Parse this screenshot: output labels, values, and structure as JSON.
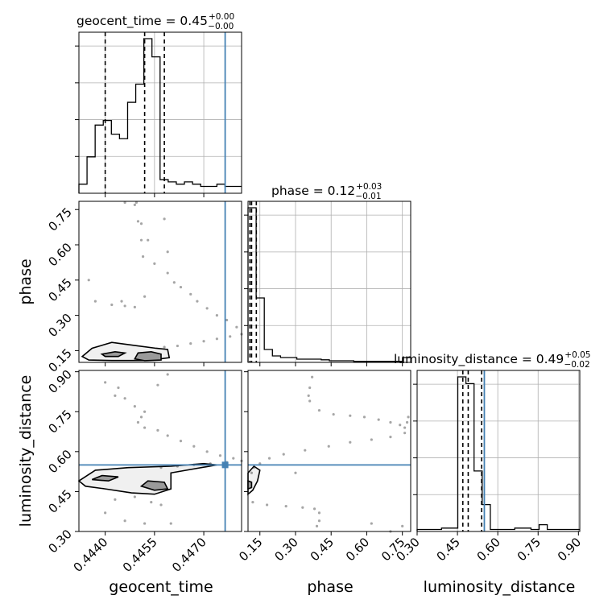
{
  "chart_data": {
    "type": "corner",
    "truth_color": "#4682b4",
    "parameters": [
      {
        "name": "geocent_time",
        "range": [
          0.4432,
          0.44815
        ],
        "ticks": [
          "0.4440",
          "0.4455",
          "0.4470"
        ],
        "tick_values": [
          0.444,
          0.4455,
          0.447
        ],
        "truth": 0.44765
      },
      {
        "name": "phase",
        "range": [
          0.1,
          0.785
        ],
        "ticks": [
          "0.15",
          "0.30",
          "0.45",
          "0.60",
          "0.75"
        ],
        "tick_values": [
          0.15,
          0.3,
          0.45,
          0.6,
          0.75
        ],
        "truth": null
      },
      {
        "name": "luminosity_distance",
        "range": [
          0.3,
          0.905
        ],
        "ticks": [
          "0.30",
          "0.45",
          "0.60",
          "0.75",
          "0.90"
        ],
        "tick_values": [
          0.3,
          0.45,
          0.6,
          0.75,
          0.9
        ],
        "truth": 0.55
      }
    ],
    "titles": [
      {
        "text": "geocent_time = 0.45",
        "sup": "+0.00",
        "sub": "−0.00"
      },
      {
        "text": "phase = 0.12",
        "sup": "+0.03",
        "sub": "−0.01"
      },
      {
        "text": "luminosity_distance = 0.49",
        "sup": "+0.05",
        "sub": "−0.02"
      }
    ],
    "histograms": [
      {
        "param": "geocent_time",
        "edges_start": 0.4432,
        "bin_width": 0.000247,
        "counts": [
          2,
          8,
          15,
          16,
          13,
          12,
          20,
          24,
          34,
          30,
          3,
          2.5,
          2,
          2.5,
          2,
          1.5,
          1.5,
          2,
          1.5,
          1.5
        ],
        "quantiles": [
          0.444,
          0.4452,
          0.4458
        ]
      },
      {
        "param": "phase",
        "edges_start": 0.1,
        "bin_width": 0.03425,
        "counts": [
          48,
          20,
          4,
          2,
          1.5,
          1.5,
          1,
          1,
          1,
          0.8,
          0.5,
          0.5,
          0.5,
          0.3,
          0.3,
          0.3,
          0.3,
          0.3,
          0.3,
          1.5
        ],
        "quantiles": [
          0.108,
          0.115,
          0.135
        ]
      },
      {
        "param": "luminosity_distance",
        "edges_start": 0.3,
        "bin_width": 0.03025,
        "counts": [
          0.3,
          0.3,
          0.3,
          0.5,
          0.5,
          23,
          22,
          9,
          4,
          0.3,
          0.3,
          0.3,
          0.5,
          0.5,
          0.3,
          1,
          0.3,
          0.3,
          0.3,
          0.3
        ],
        "quantiles": [
          0.47,
          0.49,
          0.54
        ]
      }
    ],
    "scatter_2d": [
      {
        "x": "geocent_time",
        "y": "phase",
        "points": [
          [
            0.4446,
            0.78
          ],
          [
            0.4448,
            0.79
          ],
          [
            0.4449,
            0.77
          ],
          [
            0.44495,
            0.78
          ],
          [
            0.445,
            0.7
          ],
          [
            0.4451,
            0.62
          ],
          [
            0.44515,
            0.55
          ],
          [
            0.4455,
            0.52
          ],
          [
            0.4459,
            0.48
          ],
          [
            0.4461,
            0.44
          ],
          [
            0.4463,
            0.42
          ],
          [
            0.4466,
            0.39
          ],
          [
            0.4468,
            0.36
          ],
          [
            0.4471,
            0.33
          ],
          [
            0.4474,
            0.3
          ],
          [
            0.4477,
            0.28
          ],
          [
            0.448,
            0.25
          ],
          [
            0.44815,
            0.22
          ],
          [
            0.4478,
            0.21
          ],
          [
            0.4474,
            0.2
          ],
          [
            0.447,
            0.19
          ],
          [
            0.4466,
            0.18
          ],
          [
            0.4462,
            0.17
          ],
          [
            0.4458,
            0.165
          ],
          [
            0.4442,
            0.345
          ],
          [
            0.4446,
            0.34
          ],
          [
            0.4449,
            0.335
          ],
          [
            0.4445,
            0.36
          ],
          [
            0.4452,
            0.38
          ],
          [
            0.4437,
            0.36
          ],
          [
            0.4435,
            0.45
          ],
          [
            0.4453,
            0.62
          ],
          [
            0.4459,
            0.57
          ],
          [
            0.4451,
            0.69
          ],
          [
            0.4458,
            0.71
          ]
        ],
        "contours": [
          {
            "level": 1,
            "points": [
              [
                0.4433,
                0.125
              ],
              [
                0.4436,
                0.16
              ],
              [
                0.4442,
                0.185
              ],
              [
                0.445,
                0.17
              ],
              [
                0.44555,
                0.16
              ],
              [
                0.4459,
                0.155
              ],
              [
                0.44595,
                0.12
              ],
              [
                0.4453,
                0.108
              ],
              [
                0.4442,
                0.108
              ],
              [
                0.4435,
                0.11
              ]
            ]
          },
          {
            "level": 2,
            "points": [
              [
                0.4439,
                0.135
              ],
              [
                0.4443,
                0.145
              ],
              [
                0.4446,
                0.14
              ],
              [
                0.4444,
                0.125
              ],
              [
                0.444,
                0.125
              ]
            ]
          },
          {
            "level": 2,
            "points": [
              [
                0.4449,
                0.115
              ],
              [
                0.445,
                0.14
              ],
              [
                0.4454,
                0.145
              ],
              [
                0.4457,
                0.135
              ],
              [
                0.4457,
                0.11
              ],
              [
                0.4452,
                0.107
              ]
            ]
          }
        ]
      },
      {
        "x": "geocent_time",
        "y": "luminosity_distance",
        "points": [
          [
            0.444,
            0.86
          ],
          [
            0.4444,
            0.84
          ],
          [
            0.4443,
            0.81
          ],
          [
            0.4446,
            0.8
          ],
          [
            0.4449,
            0.77
          ],
          [
            0.4452,
            0.75
          ],
          [
            0.4451,
            0.73
          ],
          [
            0.445,
            0.71
          ],
          [
            0.4452,
            0.69
          ],
          [
            0.4456,
            0.68
          ],
          [
            0.4459,
            0.66
          ],
          [
            0.4463,
            0.64
          ],
          [
            0.4467,
            0.62
          ],
          [
            0.4471,
            0.6
          ],
          [
            0.4475,
            0.585
          ],
          [
            0.4479,
            0.575
          ],
          [
            0.44815,
            0.565
          ],
          [
            0.4477,
            0.56
          ],
          [
            0.4472,
            0.555
          ],
          [
            0.4467,
            0.55
          ],
          [
            0.4462,
            0.545
          ],
          [
            0.4457,
            0.54
          ],
          [
            0.4454,
            0.41
          ],
          [
            0.4457,
            0.4
          ],
          [
            0.4449,
            0.43
          ],
          [
            0.4443,
            0.42
          ],
          [
            0.444,
            0.37
          ],
          [
            0.4446,
            0.34
          ],
          [
            0.4452,
            0.33
          ],
          [
            0.446,
            0.33
          ],
          [
            0.4456,
            0.85
          ],
          [
            0.4459,
            0.89
          ]
        ],
        "contours": [
          {
            "level": 1,
            "points": [
              [
                0.4432,
                0.49
              ],
              [
                0.4437,
                0.53
              ],
              [
                0.4447,
                0.54
              ],
              [
                0.446,
                0.545
              ],
              [
                0.447,
                0.555
              ],
              [
                0.4474,
                0.55
              ],
              [
                0.446,
                0.52
              ],
              [
                0.446,
                0.46
              ],
              [
                0.4455,
                0.44
              ],
              [
                0.4448,
                0.445
              ],
              [
                0.444,
                0.46
              ],
              [
                0.4434,
                0.47
              ]
            ]
          },
          {
            "level": 2,
            "points": [
              [
                0.4436,
                0.495
              ],
              [
                0.4439,
                0.51
              ],
              [
                0.4444,
                0.505
              ],
              [
                0.4441,
                0.49
              ]
            ]
          },
          {
            "level": 2,
            "points": [
              [
                0.4451,
                0.47
              ],
              [
                0.4453,
                0.49
              ],
              [
                0.4458,
                0.485
              ],
              [
                0.4459,
                0.46
              ],
              [
                0.4455,
                0.455
              ]
            ]
          }
        ]
      },
      {
        "x": "phase",
        "y": "luminosity_distance",
        "points": [
          [
            0.37,
            0.88
          ],
          [
            0.36,
            0.84
          ],
          [
            0.355,
            0.81
          ],
          [
            0.36,
            0.79
          ],
          [
            0.4,
            0.755
          ],
          [
            0.46,
            0.74
          ],
          [
            0.53,
            0.735
          ],
          [
            0.59,
            0.73
          ],
          [
            0.65,
            0.72
          ],
          [
            0.7,
            0.71
          ],
          [
            0.74,
            0.7
          ],
          [
            0.76,
            0.69
          ],
          [
            0.77,
            0.71
          ],
          [
            0.775,
            0.73
          ],
          [
            0.76,
            0.67
          ],
          [
            0.7,
            0.655
          ],
          [
            0.62,
            0.645
          ],
          [
            0.53,
            0.635
          ],
          [
            0.44,
            0.62
          ],
          [
            0.34,
            0.605
          ],
          [
            0.25,
            0.59
          ],
          [
            0.19,
            0.575
          ],
          [
            0.15,
            0.555
          ],
          [
            0.125,
            0.54
          ],
          [
            0.115,
            0.52
          ],
          [
            0.12,
            0.41
          ],
          [
            0.18,
            0.4
          ],
          [
            0.26,
            0.395
          ],
          [
            0.33,
            0.39
          ],
          [
            0.38,
            0.385
          ],
          [
            0.4,
            0.37
          ],
          [
            0.4,
            0.34
          ],
          [
            0.39,
            0.32
          ],
          [
            0.62,
            0.33
          ],
          [
            0.7,
            0.3
          ],
          [
            0.75,
            0.32
          ],
          [
            0.3,
            0.52
          ]
        ],
        "contours": [
          {
            "level": 1,
            "points": [
              [
                0.1,
                0.44
              ],
              [
                0.1,
                0.52
              ],
              [
                0.125,
                0.545
              ],
              [
                0.15,
                0.53
              ],
              [
                0.14,
                0.49
              ],
              [
                0.12,
                0.455
              ]
            ]
          },
          {
            "level": 2,
            "points": [
              [
                0.1,
                0.46
              ],
              [
                0.1,
                0.49
              ],
              [
                0.115,
                0.485
              ],
              [
                0.115,
                0.465
              ]
            ]
          }
        ]
      }
    ]
  }
}
